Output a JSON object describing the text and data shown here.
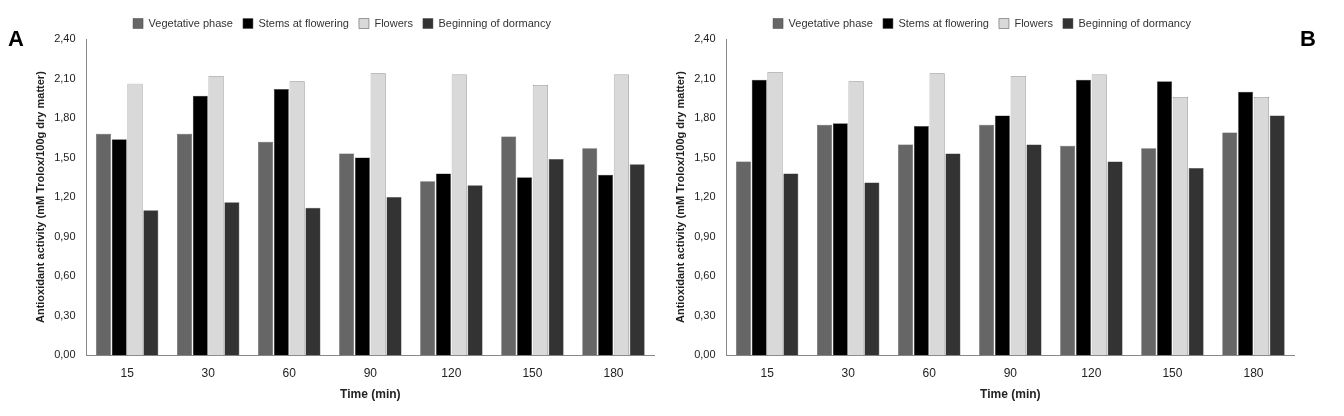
{
  "chart_data": [
    {
      "type": "bar",
      "title": "A",
      "xlabel": "Time (min)",
      "ylabel": "Antioxidant activity (mM Trolox/100g dry matter)",
      "categories": [
        "15",
        "30",
        "60",
        "90",
        "120",
        "150",
        "180"
      ],
      "series": [
        {
          "name": "Vegetative phase",
          "color": "#666666",
          "values": [
            1.68,
            1.68,
            1.62,
            1.53,
            1.32,
            1.66,
            1.57
          ]
        },
        {
          "name": "Stems at flowering",
          "color": "#000000",
          "values": [
            1.64,
            1.97,
            2.02,
            1.5,
            1.38,
            1.35,
            1.37
          ]
        },
        {
          "name": "Flowers",
          "color": "#d9d9d9",
          "values": [
            2.06,
            2.12,
            2.08,
            2.14,
            2.13,
            2.05,
            2.13
          ]
        },
        {
          "name": "Beginning of dormancy",
          "color": "#333333",
          "values": [
            1.1,
            1.16,
            1.12,
            1.2,
            1.29,
            1.49,
            1.45
          ]
        }
      ],
      "ylim": [
        0,
        2.4
      ],
      "yticks": [
        {
          "value": 0,
          "label": "0,00"
        },
        {
          "value": 0.3,
          "label": "0,30"
        },
        {
          "value": 0.6,
          "label": "0,60"
        },
        {
          "value": 0.9,
          "label": "0,90"
        },
        {
          "value": 1.2,
          "label": "1,20"
        },
        {
          "value": 1.5,
          "label": "1,50"
        },
        {
          "value": 1.8,
          "label": "1,80"
        },
        {
          "value": 2.1,
          "label": "2,10"
        },
        {
          "value": 2.4,
          "label": "2,40"
        }
      ],
      "legend": "top",
      "grid": false
    },
    {
      "type": "bar",
      "title": "B",
      "xlabel": "Time (min)",
      "ylabel": "Antioxidant activity (mM Trolox/100g dry matter)",
      "categories": [
        "15",
        "30",
        "60",
        "90",
        "120",
        "150",
        "180"
      ],
      "series": [
        {
          "name": "Vegetative phase",
          "color": "#666666",
          "values": [
            1.47,
            1.75,
            1.6,
            1.75,
            1.59,
            1.57,
            1.69
          ]
        },
        {
          "name": "Stems at flowering",
          "color": "#000000",
          "values": [
            2.09,
            1.76,
            1.74,
            1.82,
            2.09,
            2.08,
            2.0
          ]
        },
        {
          "name": "Flowers",
          "color": "#d9d9d9",
          "values": [
            2.15,
            2.08,
            2.14,
            2.12,
            2.13,
            1.96,
            1.96
          ]
        },
        {
          "name": "Beginning of dormancy",
          "color": "#333333",
          "values": [
            1.38,
            1.31,
            1.53,
            1.6,
            1.47,
            1.42,
            1.82
          ]
        }
      ],
      "ylim": [
        0,
        2.4
      ],
      "yticks": [
        {
          "value": 0,
          "label": "0,00"
        },
        {
          "value": 0.3,
          "label": "0,30"
        },
        {
          "value": 0.6,
          "label": "0,60"
        },
        {
          "value": 0.9,
          "label": "0,90"
        },
        {
          "value": 1.2,
          "label": "1,20"
        },
        {
          "value": 1.5,
          "label": "1,50"
        },
        {
          "value": 1.8,
          "label": "1,80"
        },
        {
          "value": 2.1,
          "label": "2,10"
        },
        {
          "value": 2.4,
          "label": "2,40"
        }
      ],
      "legend": "top",
      "grid": false
    }
  ]
}
